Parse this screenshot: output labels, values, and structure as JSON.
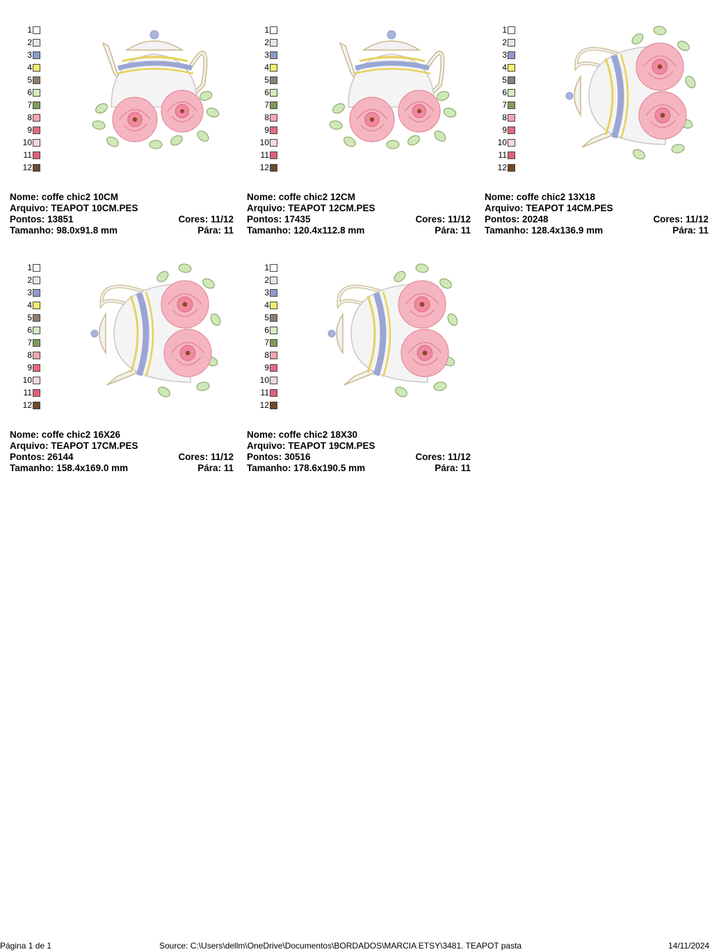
{
  "palette": [
    {
      "n": "1",
      "color": "#ffffff"
    },
    {
      "n": "2",
      "color": "#e6e6e6"
    },
    {
      "n": "3",
      "color": "#8d9ccc"
    },
    {
      "n": "4",
      "color": "#f4ee6a"
    },
    {
      "n": "5",
      "color": "#8f7f70"
    },
    {
      "n": "6",
      "color": "#d4ecbf"
    },
    {
      "n": "7",
      "color": "#7f9c5a"
    },
    {
      "n": "8",
      "color": "#f2a6b2"
    },
    {
      "n": "9",
      "color": "#e46a80"
    },
    {
      "n": "10",
      "color": "#fbd6de"
    },
    {
      "n": "11",
      "color": "#e0607a"
    },
    {
      "n": "12",
      "color": "#6e4a2a"
    }
  ],
  "designs": [
    {
      "nome": "Nome: coffe chic2 10CM",
      "arquivo": "Arquivo: TEAPOT 10CM.PES",
      "pontos": "Pontos: 13851",
      "cores": "Cores: 11/12",
      "tamanho": "Tamanho: 98.0x91.8 mm",
      "para": "Pára: 11",
      "variant": "upright"
    },
    {
      "nome": "Nome: coffe chic2 12CM",
      "arquivo": "Arquivo: TEAPOT 12CM.PES",
      "pontos": "Pontos: 17435",
      "cores": "Cores: 11/12",
      "tamanho": "Tamanho: 120.4x112.8 mm",
      "para": "Pára: 11",
      "variant": "upright"
    },
    {
      "nome": "Nome: coffe chic2 13X18",
      "arquivo": "Arquivo: TEAPOT 14CM.PES",
      "pontos": "Pontos: 20248",
      "cores": "Cores: 11/12",
      "tamanho": "Tamanho: 128.4x136.9 mm",
      "para": "Pára: 11",
      "variant": "sideways"
    },
    {
      "nome": "Nome: coffe chic2 16X26",
      "arquivo": "Arquivo: TEAPOT 17CM.PES",
      "pontos": "Pontos: 26144",
      "cores": "Cores: 11/12",
      "tamanho": "Tamanho: 158.4x169.0 mm",
      "para": "Pára: 11",
      "variant": "sideways"
    },
    {
      "nome": "Nome: coffe chic2 18X30",
      "arquivo": "Arquivo: TEAPOT 19CM.PES",
      "pontos": "Pontos: 30516",
      "cores": "Cores: 11/12",
      "tamanho": "Tamanho: 178.6x190.5 mm",
      "para": "Pára: 11",
      "variant": "sideways"
    }
  ],
  "footer": {
    "page": "Página 1 de 1",
    "source": "Source: C:\\Users\\dellm\\OneDrive\\Documentos\\BORDADOS\\MARCIA ETSY\\3481. TEAPOT pasta",
    "date": "14/11/2024"
  }
}
